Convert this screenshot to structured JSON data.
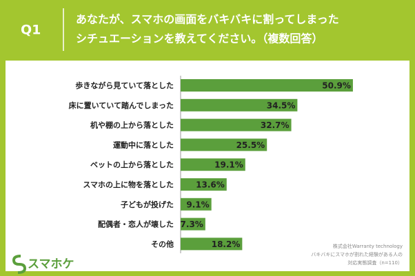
{
  "header": {
    "label": "Q1",
    "title_lines": [
      "あなたが、スマホの画面をバキバキに割ってしまった",
      "シチュエーションを教えてください。（複数回答）"
    ]
  },
  "chart_data": {
    "type": "bar",
    "orientation": "horizontal",
    "categories": [
      "歩きながら見ていて落とした",
      "床に置いていて踏んでしまった",
      "机や棚の上から落とした",
      "運動中に落とした",
      "ベットの上から落とした",
      "スマホの上に物を落とした",
      "子どもが投げた",
      "配偶者・恋人が壊した",
      "その他"
    ],
    "values": [
      50.9,
      34.5,
      32.7,
      25.5,
      19.1,
      13.6,
      9.1,
      7.3,
      18.2
    ],
    "value_labels": [
      "50.9%",
      "34.5%",
      "32.7%",
      "25.5%",
      "19.1%",
      "13.6%",
      "9.1%",
      "7.3%",
      "18.2%"
    ],
    "color": "#5b9f3c"
  },
  "footer": {
    "logo": "スマホケ",
    "source_lines": [
      "株式会社Warranty technology",
      "バキバキにスマホが割れた経験がある人の",
      "対応実態調査（n=110）"
    ]
  }
}
